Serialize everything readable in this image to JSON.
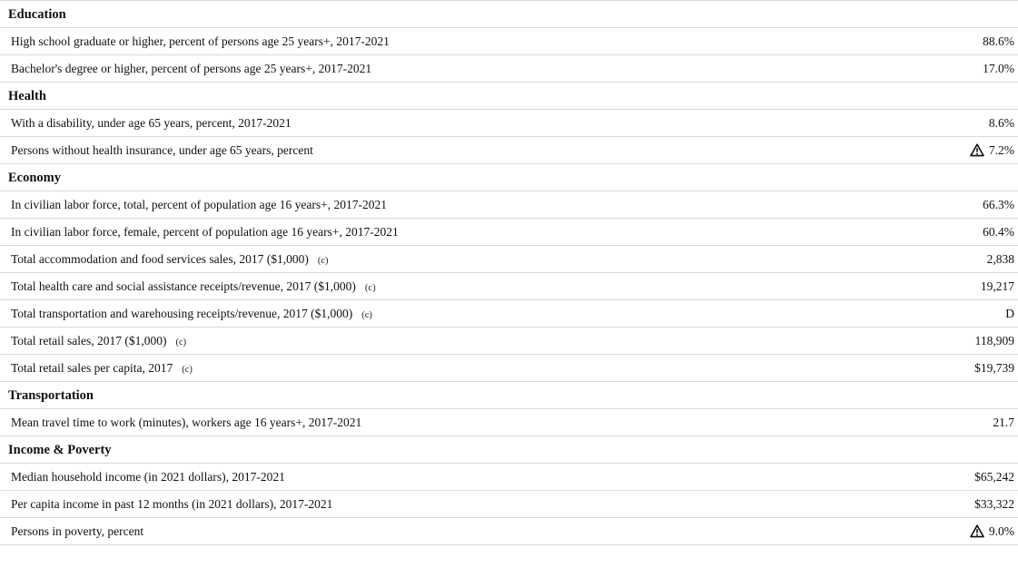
{
  "sections": [
    {
      "title": "Education",
      "rows": [
        {
          "label": "High school graduate or higher, percent of persons age 25 years+, 2017-2021",
          "note": "",
          "value": "88.6%",
          "flag": false
        },
        {
          "label": "Bachelor's degree or higher, percent of persons age 25 years+, 2017-2021",
          "note": "",
          "value": "17.0%",
          "flag": false
        }
      ]
    },
    {
      "title": "Health",
      "rows": [
        {
          "label": "With a disability, under age 65 years, percent, 2017-2021",
          "note": "",
          "value": "8.6%",
          "flag": false
        },
        {
          "label": "Persons without health insurance, under age 65 years, percent",
          "note": "",
          "value": "7.2%",
          "flag": true
        }
      ]
    },
    {
      "title": "Economy",
      "rows": [
        {
          "label": "In civilian labor force, total, percent of population age 16 years+, 2017-2021",
          "note": "",
          "value": "66.3%",
          "flag": false
        },
        {
          "label": "In civilian labor force, female, percent of population age 16 years+, 2017-2021",
          "note": "",
          "value": "60.4%",
          "flag": false
        },
        {
          "label": "Total accommodation and food services sales, 2017 ($1,000)",
          "note": "(c)",
          "value": "2,838",
          "flag": false
        },
        {
          "label": "Total health care and social assistance receipts/revenue, 2017 ($1,000)",
          "note": "(c)",
          "value": "19,217",
          "flag": false
        },
        {
          "label": "Total transportation and warehousing receipts/revenue, 2017 ($1,000)",
          "note": "(c)",
          "value": "D",
          "flag": false
        },
        {
          "label": "Total retail sales, 2017 ($1,000)",
          "note": "(c)",
          "value": "118,909",
          "flag": false
        },
        {
          "label": "Total retail sales per capita, 2017",
          "note": "(c)",
          "value": "$19,739",
          "flag": false
        }
      ]
    },
    {
      "title": "Transportation",
      "rows": [
        {
          "label": "Mean travel time to work (minutes), workers age 16 years+, 2017-2021",
          "note": "",
          "value": "21.7",
          "flag": false
        }
      ]
    },
    {
      "title": "Income & Poverty",
      "rows": [
        {
          "label": "Median household income (in 2021 dollars), 2017-2021",
          "note": "",
          "value": "$65,242",
          "flag": false
        },
        {
          "label": "Per capita income in past 12 months (in 2021 dollars), 2017-2021",
          "note": "",
          "value": "$33,322",
          "flag": false
        },
        {
          "label": "Persons in poverty, percent",
          "note": "",
          "value": "9.0%",
          "flag": true
        }
      ]
    }
  ],
  "icons": {
    "flag": "warning-triangle-icon"
  },
  "colors": {
    "rule": "#d9d9d9",
    "text": "#111111"
  }
}
